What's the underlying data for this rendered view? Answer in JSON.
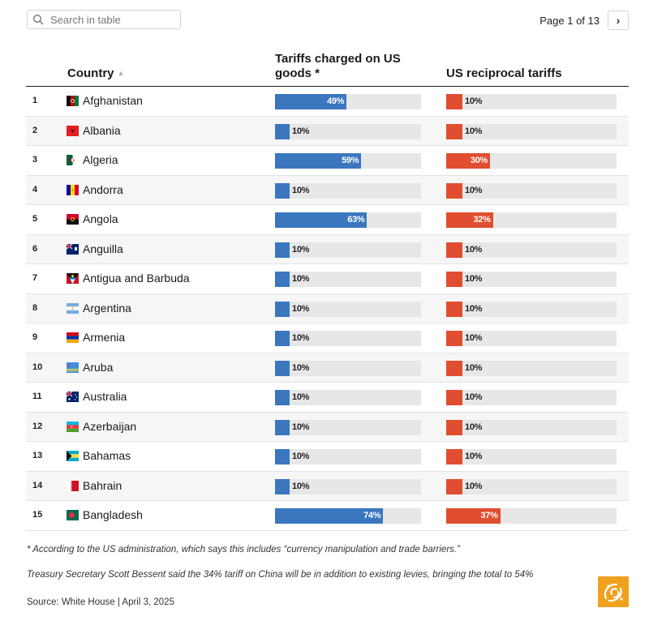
{
  "search": {
    "placeholder": "Search in table"
  },
  "pager": {
    "text": "Page 1 of 13",
    "next_icon": "chevron-right-icon"
  },
  "columns": {
    "number": "",
    "country": "Country",
    "tariffs_on_us": "Tariffs charged on US goods *",
    "us_reciprocal": "US reciprocal tariffs"
  },
  "colors": {
    "tariffs_on_us": "#3a77bf",
    "us_reciprocal": "#e04e2f",
    "track": "#e7e7e7"
  },
  "chart_data": {
    "type": "table",
    "columns": [
      "Country",
      "Tariffs charged on US goods *",
      "US reciprocal tariffs"
    ],
    "rows": [
      {
        "rank": "1",
        "country": "Afghanistan",
        "flag": "afghanistan-flag-icon",
        "tariffs_on_us": 49,
        "us_reciprocal": 10,
        "tariffs_on_us_label": "49%",
        "us_reciprocal_label": "10%"
      },
      {
        "rank": "2",
        "country": "Albania",
        "flag": "albania-flag-icon",
        "tariffs_on_us": 10,
        "us_reciprocal": 10,
        "tariffs_on_us_label": "10%",
        "us_reciprocal_label": "10%"
      },
      {
        "rank": "3",
        "country": "Algeria",
        "flag": "algeria-flag-icon",
        "tariffs_on_us": 59,
        "us_reciprocal": 30,
        "tariffs_on_us_label": "59%",
        "us_reciprocal_label": "30%"
      },
      {
        "rank": "4",
        "country": "Andorra",
        "flag": "andorra-flag-icon",
        "tariffs_on_us": 10,
        "us_reciprocal": 10,
        "tariffs_on_us_label": "10%",
        "us_reciprocal_label": "10%"
      },
      {
        "rank": "5",
        "country": "Angola",
        "flag": "angola-flag-icon",
        "tariffs_on_us": 63,
        "us_reciprocal": 32,
        "tariffs_on_us_label": "63%",
        "us_reciprocal_label": "32%"
      },
      {
        "rank": "6",
        "country": "Anguilla",
        "flag": "anguilla-flag-icon",
        "tariffs_on_us": 10,
        "us_reciprocal": 10,
        "tariffs_on_us_label": "10%",
        "us_reciprocal_label": "10%"
      },
      {
        "rank": "7",
        "country": "Antigua and Barbuda",
        "flag": "antigua-and-barbuda-flag-icon",
        "tariffs_on_us": 10,
        "us_reciprocal": 10,
        "tariffs_on_us_label": "10%",
        "us_reciprocal_label": "10%"
      },
      {
        "rank": "8",
        "country": "Argentina",
        "flag": "argentina-flag-icon",
        "tariffs_on_us": 10,
        "us_reciprocal": 10,
        "tariffs_on_us_label": "10%",
        "us_reciprocal_label": "10%"
      },
      {
        "rank": "9",
        "country": "Armenia",
        "flag": "armenia-flag-icon",
        "tariffs_on_us": 10,
        "us_reciprocal": 10,
        "tariffs_on_us_label": "10%",
        "us_reciprocal_label": "10%"
      },
      {
        "rank": "10",
        "country": "Aruba",
        "flag": "aruba-flag-icon",
        "tariffs_on_us": 10,
        "us_reciprocal": 10,
        "tariffs_on_us_label": "10%",
        "us_reciprocal_label": "10%"
      },
      {
        "rank": "11",
        "country": "Australia",
        "flag": "australia-flag-icon",
        "tariffs_on_us": 10,
        "us_reciprocal": 10,
        "tariffs_on_us_label": "10%",
        "us_reciprocal_label": "10%"
      },
      {
        "rank": "12",
        "country": "Azerbaijan",
        "flag": "azerbaijan-flag-icon",
        "tariffs_on_us": 10,
        "us_reciprocal": 10,
        "tariffs_on_us_label": "10%",
        "us_reciprocal_label": "10%"
      },
      {
        "rank": "13",
        "country": "Bahamas",
        "flag": "bahamas-flag-icon",
        "tariffs_on_us": 10,
        "us_reciprocal": 10,
        "tariffs_on_us_label": "10%",
        "us_reciprocal_label": "10%"
      },
      {
        "rank": "14",
        "country": "Bahrain",
        "flag": "bahrain-flag-icon",
        "tariffs_on_us": 10,
        "us_reciprocal": 10,
        "tariffs_on_us_label": "10%",
        "us_reciprocal_label": "10%"
      },
      {
        "rank": "15",
        "country": "Bangladesh",
        "flag": "bangladesh-flag-icon",
        "tariffs_on_us": 74,
        "us_reciprocal": 37,
        "tariffs_on_us_label": "74%",
        "us_reciprocal_label": "37%"
      }
    ]
  },
  "notes": {
    "footnote": "* According to the US administration, which says this includes “currency manipulation and trade barriers.”",
    "china_note": "Treasury Secretary Scott Bessent said the 34% tariff on China will be in addition to existing levies, bringing the total to 54%",
    "source": "Source: White House | April 3, 2025"
  },
  "logo": {
    "name": "al-jazeera-logo"
  }
}
